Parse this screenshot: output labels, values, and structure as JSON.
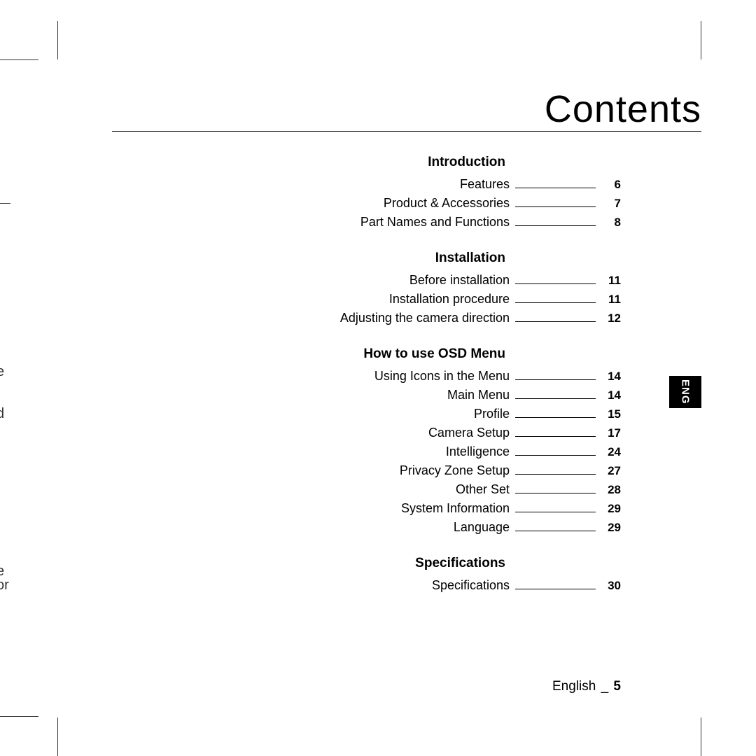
{
  "title": "Contents",
  "langTab": "ENG",
  "footer": {
    "label": "English",
    "dash": "_",
    "page": "5"
  },
  "bleed": {
    "b1": "e",
    "b2": "d",
    "b3": "e",
    "b4": "or"
  },
  "sections": [
    {
      "heading": "Introduction",
      "items": [
        {
          "label": "Features",
          "page": "6"
        },
        {
          "label": "Product & Accessories",
          "page": "7"
        },
        {
          "label": "Part Names and Functions",
          "page": "8"
        }
      ]
    },
    {
      "heading": "Installation",
      "items": [
        {
          "label": "Before installation",
          "page": "11"
        },
        {
          "label": "Installation procedure",
          "page": "11"
        },
        {
          "label": "Adjusting the camera direction",
          "page": "12"
        }
      ]
    },
    {
      "heading": "How to use OSD Menu",
      "items": [
        {
          "label": "Using Icons in the Menu",
          "page": "14"
        },
        {
          "label": "Main Menu",
          "page": "14"
        },
        {
          "label": "Profile",
          "page": "15"
        },
        {
          "label": "Camera Setup",
          "page": "17"
        },
        {
          "label": "Intelligence",
          "page": "24"
        },
        {
          "label": "Privacy Zone Setup",
          "page": "27"
        },
        {
          "label": "Other Set",
          "page": "28"
        },
        {
          "label": "System Information",
          "page": "29"
        },
        {
          "label": "Language",
          "page": "29"
        }
      ]
    },
    {
      "heading": "Specifications",
      "items": [
        {
          "label": "Specifications",
          "page": "30"
        }
      ]
    }
  ]
}
